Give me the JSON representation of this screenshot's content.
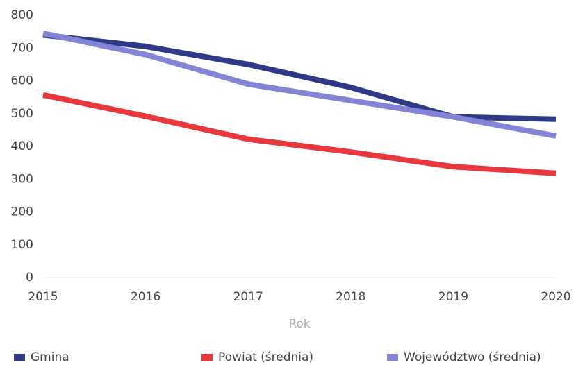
{
  "chart_data": {
    "type": "line",
    "x": [
      2015,
      2016,
      2017,
      2018,
      2019,
      2020
    ],
    "xlim": [
      2015,
      2020
    ],
    "xticks": [
      2015,
      2016,
      2017,
      2018,
      2019,
      2020
    ],
    "ylim": [
      0,
      800
    ],
    "yticks": [
      0,
      100,
      200,
      300,
      400,
      500,
      600,
      700,
      800
    ],
    "xlabel": "Rok",
    "legend": "bottom",
    "series": [
      {
        "name": "Gmina",
        "color": "#2e3a87",
        "values": [
          740,
          705,
          650,
          580,
          490,
          483
        ]
      },
      {
        "name": "Powiat (średnia)",
        "color": "#e8383d",
        "values": [
          557,
          492,
          422,
          383,
          338,
          318
        ]
      },
      {
        "name": "Województwo (średnia)",
        "color": "#8484d4",
        "values": [
          745,
          680,
          590,
          540,
          490,
          432
        ]
      }
    ]
  }
}
